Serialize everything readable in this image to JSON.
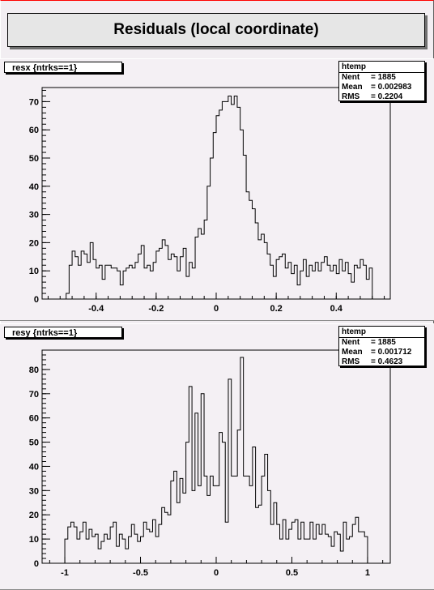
{
  "canvas_title": "Residuals (local coordinate)",
  "panels": [
    {
      "hist_title": "resx {ntrks==1}",
      "stats": {
        "name": "htemp",
        "rows": [
          {
            "k": "Nent",
            "v": "= 1885"
          },
          {
            "k": "Mean",
            "v": " = 0.002983"
          },
          {
            "k": "RMS",
            "v": "  = 0.2204"
          }
        ]
      }
    },
    {
      "hist_title": "resy {ntrks==1}",
      "stats": {
        "name": "htemp",
        "rows": [
          {
            "k": "Nent",
            "v": "= 1885"
          },
          {
            "k": "Mean",
            "v": " = 0.001712"
          },
          {
            "k": "RMS",
            "v": "  = 0.4623"
          }
        ]
      }
    }
  ],
  "chart_data": [
    {
      "type": "bar",
      "title": "resx {ntrks==1}",
      "xlim": [
        -0.58,
        0.58
      ],
      "ylim": [
        0,
        75
      ],
      "xticks": [
        -0.4,
        -0.2,
        0,
        0.2,
        0.4
      ],
      "xtick_labels": [
        "-0.4",
        "-0.2",
        "0",
        "0.2",
        "0.4"
      ],
      "yticks": [
        0,
        10,
        20,
        30,
        40,
        50,
        60,
        70
      ],
      "ytick_labels": [
        "0",
        "10",
        "20",
        "30",
        "40",
        "50",
        "60",
        "70"
      ],
      "bin_start": -0.5,
      "bin_width": 0.01,
      "values": [
        2,
        12,
        17,
        15,
        12,
        17,
        16,
        13,
        20,
        14,
        11,
        12,
        7,
        12,
        12,
        11,
        11,
        10,
        5,
        10,
        11,
        12,
        11,
        13,
        16,
        19,
        11,
        12,
        10,
        13,
        17,
        18,
        21,
        19,
        14,
        16,
        15,
        10,
        15,
        18,
        8,
        13,
        11,
        22,
        25,
        23,
        28,
        40,
        50,
        59,
        65,
        67,
        70,
        70,
        72,
        69,
        72,
        68,
        60,
        51,
        38,
        35,
        32,
        27,
        21,
        23,
        20,
        16,
        12,
        8,
        14,
        15,
        16,
        11,
        13,
        9,
        12,
        5,
        10,
        14,
        8,
        12,
        10,
        13,
        10,
        13,
        15,
        12,
        10,
        12,
        9,
        14,
        10,
        13,
        9,
        6,
        12,
        11,
        14,
        12,
        7,
        11,
        0
      ],
      "grid": false
    },
    {
      "type": "bar",
      "title": "resy {ntrks==1}",
      "xlim": [
        -1.15,
        1.15
      ],
      "ylim": [
        0,
        88
      ],
      "xticks": [
        -1,
        -0.5,
        0,
        0.5,
        1
      ],
      "xtick_labels": [
        "-1",
        "-0.5",
        "0",
        "0.5",
        "1"
      ],
      "yticks": [
        0,
        10,
        20,
        30,
        40,
        50,
        60,
        70,
        80
      ],
      "ytick_labels": [
        "0",
        "10",
        "20",
        "30",
        "40",
        "50",
        "60",
        "70",
        "80"
      ],
      "bin_start": -1.0,
      "bin_width": 0.02,
      "values": [
        10,
        15,
        17,
        15,
        10,
        13,
        17,
        10,
        14,
        11,
        12,
        6,
        9,
        12,
        10,
        15,
        17,
        7,
        12,
        10,
        6,
        11,
        16,
        12,
        9,
        11,
        17,
        14,
        13,
        18,
        11,
        16,
        23,
        21,
        20,
        34,
        38,
        25,
        35,
        29,
        50,
        73,
        30,
        62,
        32,
        70,
        36,
        28,
        36,
        32,
        32,
        54,
        50,
        17,
        76,
        36,
        36,
        55,
        85,
        36,
        36,
        32,
        48,
        23,
        24,
        36,
        45,
        30,
        16,
        25,
        16,
        10,
        18,
        10,
        14,
        17,
        18,
        10,
        17,
        10,
        10,
        17,
        10,
        16,
        12,
        16,
        12,
        11,
        7,
        13,
        12,
        5,
        17,
        10,
        11,
        16,
        19,
        13,
        13,
        11,
        0
      ],
      "grid": false
    }
  ]
}
